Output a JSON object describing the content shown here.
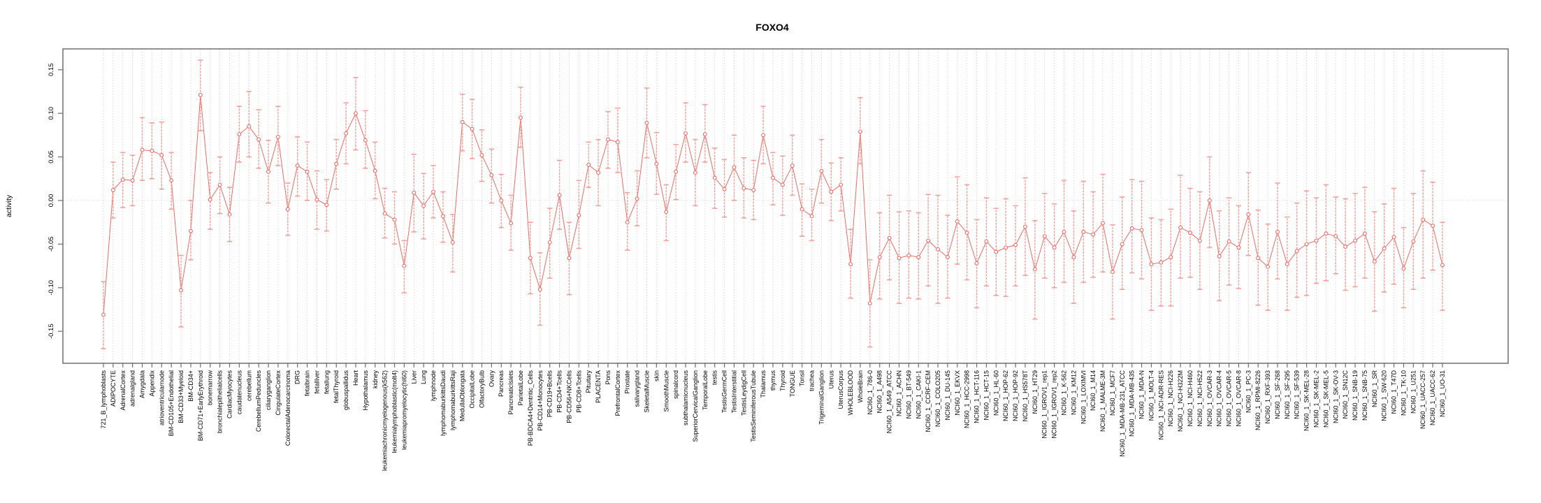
{
  "title": "FOXO4",
  "chart_data": {
    "type": "line",
    "subtype": "point-estimates-with-error-bars",
    "title": "FOXO4",
    "xlabel": "",
    "ylabel": "activity",
    "ylim": [
      -0.187,
      0.174
    ],
    "yticks": [
      -0.15,
      -0.1,
      -0.05,
      0.0,
      0.05,
      0.1,
      0.15
    ],
    "grid": {
      "vertical_dotted_per_category": true,
      "horizontal_dotted_zero_line": true
    },
    "legend_position": "none",
    "colors": {
      "line": "#ee6a62",
      "point": "#ee6a62",
      "errorbar": "#f59f9b",
      "gridline": "#d9d9d9",
      "zeroline": "#e2dede",
      "axis": "#6e6e6e"
    },
    "points": [
      {
        "label": "721_B_lymphoblasts",
        "value": -0.131,
        "lo": -0.17,
        "hi": -0.093
      },
      {
        "label": "ADIPOCYTE",
        "value": 0.012,
        "lo": -0.02,
        "hi": 0.044
      },
      {
        "label": "AdrenalCortex",
        "value": 0.024,
        "lo": -0.008,
        "hi": 0.055
      },
      {
        "label": "adrenalgland",
        "value": 0.023,
        "lo": -0.006,
        "hi": 0.052
      },
      {
        "label": "Amygdala",
        "value": 0.058,
        "lo": 0.023,
        "hi": 0.095
      },
      {
        "label": "Appendix",
        "value": 0.057,
        "lo": 0.025,
        "hi": 0.089
      },
      {
        "label": "atrioventricularnode",
        "value": 0.052,
        "lo": 0.013,
        "hi": 0.09
      },
      {
        "label": "BM-CD105+Endothelial",
        "value": 0.023,
        "lo": -0.01,
        "hi": 0.055
      },
      {
        "label": "BM-CD33+Myeloid",
        "value": -0.103,
        "lo": -0.145,
        "hi": -0.063
      },
      {
        "label": "BM-CD34+",
        "value": -0.035,
        "lo": -0.068,
        "hi": 0.0
      },
      {
        "label": "BM-CD71+EarlyErythroid",
        "value": 0.121,
        "lo": 0.08,
        "hi": 0.161
      },
      {
        "label": "bonemarrow",
        "value": 0.001,
        "lo": -0.033,
        "hi": 0.032
      },
      {
        "label": "bronchialepithelialcells",
        "value": 0.018,
        "lo": -0.015,
        "hi": 0.05
      },
      {
        "label": "CardiacMyocytes",
        "value": -0.016,
        "lo": -0.047,
        "hi": 0.015
      },
      {
        "label": "caudatenucleus",
        "value": 0.076,
        "lo": 0.044,
        "hi": 0.108
      },
      {
        "label": "cerebellum",
        "value": 0.085,
        "lo": 0.05,
        "hi": 0.125
      },
      {
        "label": "CerebellumPeduncles",
        "value": 0.07,
        "lo": 0.037,
        "hi": 0.104
      },
      {
        "label": "ciliaryganglion",
        "value": 0.033,
        "lo": -0.003,
        "hi": 0.069
      },
      {
        "label": "CingulateCortex",
        "value": 0.073,
        "lo": 0.04,
        "hi": 0.108
      },
      {
        "label": "ColorectalAdenocarcinoma",
        "value": -0.01,
        "lo": -0.04,
        "hi": 0.02
      },
      {
        "label": "DRG",
        "value": 0.04,
        "lo": 0.005,
        "hi": 0.073
      },
      {
        "label": "fetalbrain",
        "value": 0.033,
        "lo": 0.0,
        "hi": 0.067
      },
      {
        "label": "fetalliver",
        "value": 0.001,
        "lo": -0.033,
        "hi": 0.034
      },
      {
        "label": "fetallung",
        "value": -0.005,
        "lo": -0.035,
        "hi": 0.024
      },
      {
        "label": "fetalThyroid",
        "value": 0.042,
        "lo": 0.013,
        "hi": 0.07
      },
      {
        "label": "globuspallidus",
        "value": 0.077,
        "lo": 0.042,
        "hi": 0.112
      },
      {
        "label": "Heart",
        "value": 0.1,
        "lo": 0.058,
        "hi": 0.141
      },
      {
        "label": "Hypothalamus",
        "value": 0.069,
        "lo": 0.037,
        "hi": 0.103
      },
      {
        "label": "kidney",
        "value": 0.034,
        "lo": 0.002,
        "hi": 0.067
      },
      {
        "label": "leukemiachronicmyelogenous(k562)",
        "value": -0.015,
        "lo": -0.043,
        "hi": 0.014
      },
      {
        "label": "leukemialymphoblastic(molt4)",
        "value": -0.022,
        "lo": -0.05,
        "hi": 0.01
      },
      {
        "label": "leukemiapromyelocytic(hl60)",
        "value": -0.075,
        "lo": -0.106,
        "hi": -0.046
      },
      {
        "label": "Liver",
        "value": 0.009,
        "lo": -0.036,
        "hi": 0.053
      },
      {
        "label": "Lung",
        "value": -0.006,
        "lo": -0.044,
        "hi": 0.031
      },
      {
        "label": "lymphnode",
        "value": 0.01,
        "lo": -0.02,
        "hi": 0.04
      },
      {
        "label": "lymphomaburkittsDaudi",
        "value": -0.018,
        "lo": -0.048,
        "hi": 0.01
      },
      {
        "label": "lymphomaburkittsRaji",
        "value": -0.048,
        "lo": -0.082,
        "hi": -0.016
      },
      {
        "label": "MedullaOblongata",
        "value": 0.09,
        "lo": 0.057,
        "hi": 0.122
      },
      {
        "label": "OccipitalLobe",
        "value": 0.082,
        "lo": 0.048,
        "hi": 0.116
      },
      {
        "label": "OlfactoryBulb",
        "value": 0.052,
        "lo": 0.022,
        "hi": 0.081
      },
      {
        "label": "Ovary",
        "value": 0.029,
        "lo": -0.003,
        "hi": 0.059
      },
      {
        "label": "Pancreas",
        "value": 0.0,
        "lo": -0.031,
        "hi": 0.03
      },
      {
        "label": "PancreaticIslets",
        "value": -0.026,
        "lo": -0.057,
        "hi": 0.006
      },
      {
        "label": "ParietalLobe",
        "value": 0.095,
        "lo": 0.061,
        "hi": 0.13
      },
      {
        "label": "PB-BDCA4+Dentritic_Cells",
        "value": -0.066,
        "lo": -0.107,
        "hi": -0.025
      },
      {
        "label": "PB-CD14+Monocytes",
        "value": -0.102,
        "lo": -0.143,
        "hi": -0.06
      },
      {
        "label": "PB-CD19+Bcells",
        "value": -0.048,
        "lo": -0.089,
        "hi": -0.009
      },
      {
        "label": "PB-CD4+Tcells",
        "value": 0.006,
        "lo": -0.033,
        "hi": 0.046
      },
      {
        "label": "PB-CD56+NKCells",
        "value": -0.066,
        "lo": -0.108,
        "hi": -0.025
      },
      {
        "label": "PB-CD8+Tcells",
        "value": -0.017,
        "lo": -0.055,
        "hi": 0.023
      },
      {
        "label": "Pituitary",
        "value": 0.041,
        "lo": 0.015,
        "hi": 0.067
      },
      {
        "label": "PLACENTA",
        "value": 0.032,
        "lo": -0.006,
        "hi": 0.07
      },
      {
        "label": "Pons",
        "value": 0.07,
        "lo": 0.037,
        "hi": 0.102
      },
      {
        "label": "PrefrontalCortex",
        "value": 0.067,
        "lo": 0.032,
        "hi": 0.106
      },
      {
        "label": "Prostate",
        "value": -0.025,
        "lo": -0.057,
        "hi": 0.009
      },
      {
        "label": "salivarygland",
        "value": 0.002,
        "lo": -0.029,
        "hi": 0.034
      },
      {
        "label": "SkeletalMuscle",
        "value": 0.089,
        "lo": 0.049,
        "hi": 0.129
      },
      {
        "label": "skin",
        "value": 0.042,
        "lo": 0.007,
        "hi": 0.078
      },
      {
        "label": "SmoothMuscle",
        "value": -0.013,
        "lo": -0.046,
        "hi": 0.018
      },
      {
        "label": "spinalcord",
        "value": 0.033,
        "lo": 0.001,
        "hi": 0.064
      },
      {
        "label": "subthalamicnucleus",
        "value": 0.077,
        "lo": 0.044,
        "hi": 0.112
      },
      {
        "label": "SuperiorCervicalGanglion",
        "value": 0.032,
        "lo": -0.006,
        "hi": 0.07
      },
      {
        "label": "TemporalLobe",
        "value": 0.076,
        "lo": 0.044,
        "hi": 0.11
      },
      {
        "label": "testis",
        "value": 0.026,
        "lo": -0.009,
        "hi": 0.06
      },
      {
        "label": "TestisGermCell",
        "value": 0.013,
        "lo": -0.019,
        "hi": 0.047
      },
      {
        "label": "TestisInterstitial",
        "value": 0.038,
        "lo": 0.0,
        "hi": 0.075
      },
      {
        "label": "TestisLeydigCell",
        "value": 0.014,
        "lo": -0.02,
        "hi": 0.049
      },
      {
        "label": "TestisSeminiferousTubule",
        "value": 0.012,
        "lo": -0.022,
        "hi": 0.046
      },
      {
        "label": "Thalamus",
        "value": 0.075,
        "lo": 0.042,
        "hi": 0.108
      },
      {
        "label": "thymus",
        "value": 0.026,
        "lo": -0.005,
        "hi": 0.055
      },
      {
        "label": "Thyroid",
        "value": 0.018,
        "lo": -0.017,
        "hi": 0.051
      },
      {
        "label": "TONGUE",
        "value": 0.04,
        "lo": 0.006,
        "hi": 0.075
      },
      {
        "label": "Tonsil",
        "value": -0.01,
        "lo": -0.041,
        "hi": 0.019
      },
      {
        "label": "trachea",
        "value": -0.018,
        "lo": -0.046,
        "hi": 0.013
      },
      {
        "label": "TrigeminalGanglion",
        "value": 0.034,
        "lo": -0.003,
        "hi": 0.07
      },
      {
        "label": "Uterus",
        "value": 0.01,
        "lo": -0.023,
        "hi": 0.043
      },
      {
        "label": "UterusCorpus",
        "value": 0.018,
        "lo": -0.012,
        "hi": 0.049
      },
      {
        "label": "WHOLEBLOOD",
        "value": -0.073,
        "lo": -0.112,
        "hi": -0.033
      },
      {
        "label": "WholeBrain",
        "value": 0.079,
        "lo": 0.042,
        "hi": 0.118
      },
      {
        "label": "NCI60_1_786-0",
        "value": -0.118,
        "lo": -0.168,
        "hi": -0.068
      },
      {
        "label": "NCI60_1_A498",
        "value": -0.065,
        "lo": -0.113,
        "hi": -0.014
      },
      {
        "label": "NCI60_1_A549_ATCC",
        "value": -0.043,
        "lo": -0.091,
        "hi": 0.006
      },
      {
        "label": "NCI60_1_ACHN",
        "value": -0.066,
        "lo": -0.118,
        "hi": -0.013
      },
      {
        "label": "NCI60_1_BT-549",
        "value": -0.063,
        "lo": -0.112,
        "hi": -0.012
      },
      {
        "label": "NCI60_1_CAKI-1",
        "value": -0.065,
        "lo": -0.113,
        "hi": -0.014
      },
      {
        "label": "NCI60_1_CCRF-CEM",
        "value": -0.046,
        "lo": -0.098,
        "hi": 0.007
      },
      {
        "label": "NCI60_1_COLO205",
        "value": -0.056,
        "lo": -0.118,
        "hi": 0.006
      },
      {
        "label": "NCI60_1_DU-145",
        "value": -0.065,
        "lo": -0.112,
        "hi": -0.017
      },
      {
        "label": "NCI60_1_EKVX",
        "value": -0.024,
        "lo": -0.073,
        "hi": 0.027
      },
      {
        "label": "NCI60_1_HCC-2998",
        "value": -0.037,
        "lo": -0.091,
        "hi": 0.018
      },
      {
        "label": "NCI60_1_HCT-116",
        "value": -0.072,
        "lo": -0.123,
        "hi": -0.022
      },
      {
        "label": "NCI60_1_HCT-15",
        "value": -0.047,
        "lo": -0.098,
        "hi": 0.003
      },
      {
        "label": "NCI60_1_HL-60",
        "value": -0.059,
        "lo": -0.109,
        "hi": -0.009
      },
      {
        "label": "NCI60_1_HOP-62",
        "value": -0.054,
        "lo": -0.11,
        "hi": 0.002
      },
      {
        "label": "NCI60_1_HOP-92",
        "value": -0.051,
        "lo": -0.098,
        "hi": -0.006
      },
      {
        "label": "NCI60_1_HS578T",
        "value": -0.03,
        "lo": -0.086,
        "hi": 0.026
      },
      {
        "label": "NCI60_1_HT29",
        "value": -0.079,
        "lo": -0.136,
        "hi": -0.023
      },
      {
        "label": "NCI60_1_IGROV1_rep1",
        "value": -0.041,
        "lo": -0.089,
        "hi": 0.008
      },
      {
        "label": "NCI60_1_IGROV1_rep2",
        "value": -0.054,
        "lo": -0.1,
        "hi": -0.004
      },
      {
        "label": "NCI60_1_K-562",
        "value": -0.036,
        "lo": -0.094,
        "hi": 0.023
      },
      {
        "label": "NCI60_1_KM12",
        "value": -0.065,
        "lo": -0.118,
        "hi": -0.012
      },
      {
        "label": "NCI60_1_LOXIMVI",
        "value": -0.036,
        "lo": -0.094,
        "hi": 0.022
      },
      {
        "label": "NCI60_1_M14",
        "value": -0.039,
        "lo": -0.088,
        "hi": 0.01
      },
      {
        "label": "NCI60_1_MALME-3M",
        "value": -0.026,
        "lo": -0.082,
        "hi": 0.03
      },
      {
        "label": "NCI60_1_MCF7",
        "value": -0.082,
        "lo": -0.136,
        "hi": -0.028
      },
      {
        "label": "NCI60_1_MDA-MB-231_ATCC",
        "value": -0.05,
        "lo": -0.102,
        "hi": 0.004
      },
      {
        "label": "NCI60_1_MDA-MB-435",
        "value": -0.032,
        "lo": -0.083,
        "hi": 0.024
      },
      {
        "label": "NCI60_1_MDA-N",
        "value": -0.034,
        "lo": -0.09,
        "hi": 0.022
      },
      {
        "label": "NCI60_1_MOLT-4",
        "value": -0.073,
        "lo": -0.126,
        "hi": -0.02
      },
      {
        "label": "NCI60_1_NCI-ADR-RES",
        "value": -0.071,
        "lo": -0.121,
        "hi": -0.022
      },
      {
        "label": "NCI60_1_NCI-H226",
        "value": -0.065,
        "lo": -0.121,
        "hi": -0.01
      },
      {
        "label": "NCI60_1_NCI-H322M",
        "value": -0.031,
        "lo": -0.089,
        "hi": 0.029
      },
      {
        "label": "NCI60_1_NCI-H460",
        "value": -0.037,
        "lo": -0.088,
        "hi": 0.014
      },
      {
        "label": "NCI60_1_NCI-H522",
        "value": -0.046,
        "lo": -0.102,
        "hi": 0.01
      },
      {
        "label": "NCI60_1_OVCAR-3",
        "value": 0.0,
        "lo": -0.054,
        "hi": 0.05
      },
      {
        "label": "NCI60_1_OVCAR-4",
        "value": -0.064,
        "lo": -0.115,
        "hi": -0.012
      },
      {
        "label": "NCI60_1_OVCAR-5",
        "value": -0.047,
        "lo": -0.097,
        "hi": 0.003
      },
      {
        "label": "NCI60_1_OVCAR-8",
        "value": -0.054,
        "lo": -0.101,
        "hi": -0.006
      },
      {
        "label": "NCI60_1_PC-3",
        "value": -0.016,
        "lo": -0.063,
        "hi": 0.032
      },
      {
        "label": "NCI60_1_RPMI-8226",
        "value": -0.066,
        "lo": -0.12,
        "hi": -0.011
      },
      {
        "label": "NCI60_1_RXF-393",
        "value": -0.076,
        "lo": -0.126,
        "hi": -0.027
      },
      {
        "label": "NCI60_1_SF-268",
        "value": -0.036,
        "lo": -0.09,
        "hi": 0.02
      },
      {
        "label": "NCI60_1_SF-295",
        "value": -0.073,
        "lo": -0.126,
        "hi": -0.019
      },
      {
        "label": "NCI60_1_SF-539",
        "value": -0.058,
        "lo": -0.111,
        "hi": -0.003
      },
      {
        "label": "NCI60_1_SK-MEL-28",
        "value": -0.05,
        "lo": -0.109,
        "hi": 0.011
      },
      {
        "label": "NCI60_1_SK-MEL-2",
        "value": -0.046,
        "lo": -0.095,
        "hi": 0.003
      },
      {
        "label": "NCI60_1_SK-MEL-5",
        "value": -0.038,
        "lo": -0.092,
        "hi": 0.018
      },
      {
        "label": "NCI60_1_SK-OV-3",
        "value": -0.041,
        "lo": -0.084,
        "hi": 0.004
      },
      {
        "label": "NCI60_1_SN12C",
        "value": -0.053,
        "lo": -0.103,
        "hi": 0.002
      },
      {
        "label": "NCI60_1_SNB-19",
        "value": -0.046,
        "lo": -0.099,
        "hi": 0.008
      },
      {
        "label": "NCI60_1_SNB-75",
        "value": -0.038,
        "lo": -0.089,
        "hi": 0.015
      },
      {
        "label": "NCI60_1_SR",
        "value": -0.07,
        "lo": -0.127,
        "hi": -0.013
      },
      {
        "label": "NCI60_1_SW-620",
        "value": -0.055,
        "lo": -0.105,
        "hi": -0.004
      },
      {
        "label": "NCI60_1_T47D",
        "value": -0.042,
        "lo": -0.096,
        "hi": 0.014
      },
      {
        "label": "NCI60_1_TK-10",
        "value": -0.078,
        "lo": -0.123,
        "hi": -0.031
      },
      {
        "label": "NCI60_1_U251",
        "value": -0.047,
        "lo": -0.102,
        "hi": 0.008
      },
      {
        "label": "NCI60_1_UACC-257",
        "value": -0.022,
        "lo": -0.089,
        "hi": 0.034
      },
      {
        "label": "NCI60_1_UACC-62",
        "value": -0.029,
        "lo": -0.08,
        "hi": 0.021
      },
      {
        "label": "NCI60_1_UO-31",
        "value": -0.074,
        "lo": -0.126,
        "hi": -0.025
      }
    ]
  }
}
